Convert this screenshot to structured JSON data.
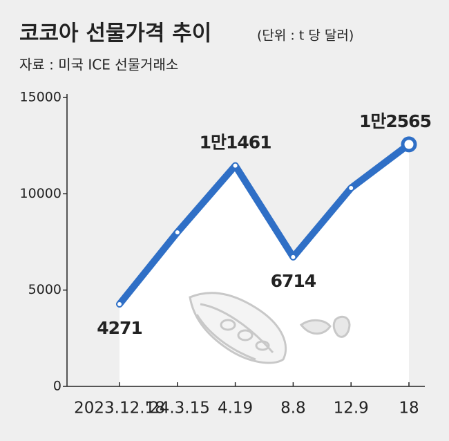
{
  "chart_data": {
    "type": "line",
    "title": "코코아 선물가격 추이",
    "subtitle": "(단위 : t 당 달러)",
    "source": "자료 : 미국 ICE 선물거래소",
    "categories": [
      "2023.12.18",
      "'24.3.15",
      "4.19",
      "8.8",
      "12.9",
      "18"
    ],
    "values": [
      4271,
      8000,
      11461,
      6714,
      10300,
      12565
    ],
    "value_labels": [
      "4271",
      null,
      "1만1461",
      "6714",
      null,
      "1만2565"
    ],
    "color": "#2f6fc6",
    "ylim": [
      0,
      15000
    ],
    "yticks": [
      0,
      5000,
      10000,
      15000
    ]
  }
}
